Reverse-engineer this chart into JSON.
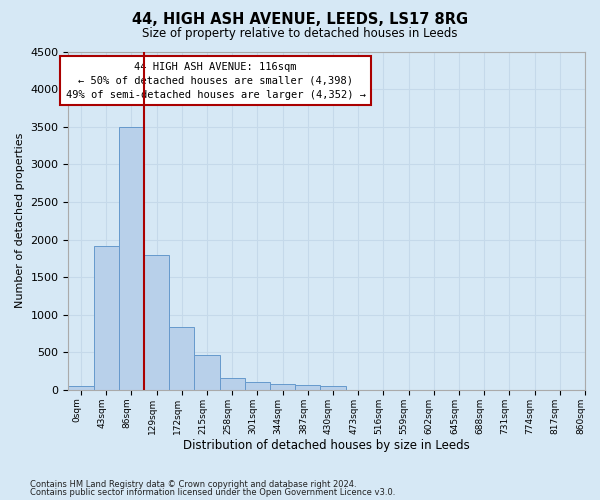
{
  "title": "44, HIGH ASH AVENUE, LEEDS, LS17 8RG",
  "subtitle": "Size of property relative to detached houses in Leeds",
  "xlabel": "Distribution of detached houses by size in Leeds",
  "ylabel": "Number of detached properties",
  "bar_values": [
    50,
    1920,
    3500,
    1790,
    840,
    460,
    160,
    100,
    80,
    60,
    50,
    0,
    0,
    0,
    0,
    0,
    0,
    0,
    0,
    0
  ],
  "x_labels": [
    "0sqm",
    "43sqm",
    "86sqm",
    "129sqm",
    "172sqm",
    "215sqm",
    "258sqm",
    "301sqm",
    "344sqm",
    "387sqm",
    "430sqm",
    "473sqm",
    "516sqm",
    "559sqm",
    "602sqm",
    "645sqm",
    "688sqm",
    "731sqm",
    "774sqm",
    "817sqm",
    "860sqm"
  ],
  "bar_color": "#b8d0ea",
  "bar_edge_color": "#6699cc",
  "vline_x": 3.0,
  "vline_color": "#aa0000",
  "annotation_text": "44 HIGH ASH AVENUE: 116sqm\n← 50% of detached houses are smaller (4,398)\n49% of semi-detached houses are larger (4,352) →",
  "annotation_box_color": "#aa0000",
  "ylim": [
    0,
    4500
  ],
  "yticks": [
    0,
    500,
    1000,
    1500,
    2000,
    2500,
    3000,
    3500,
    4000,
    4500
  ],
  "footnote1": "Contains HM Land Registry data © Crown copyright and database right 2024.",
  "footnote2": "Contains public sector information licensed under the Open Government Licence v3.0.",
  "background_color": "#d6e8f5",
  "grid_color": "#c5d9ea"
}
